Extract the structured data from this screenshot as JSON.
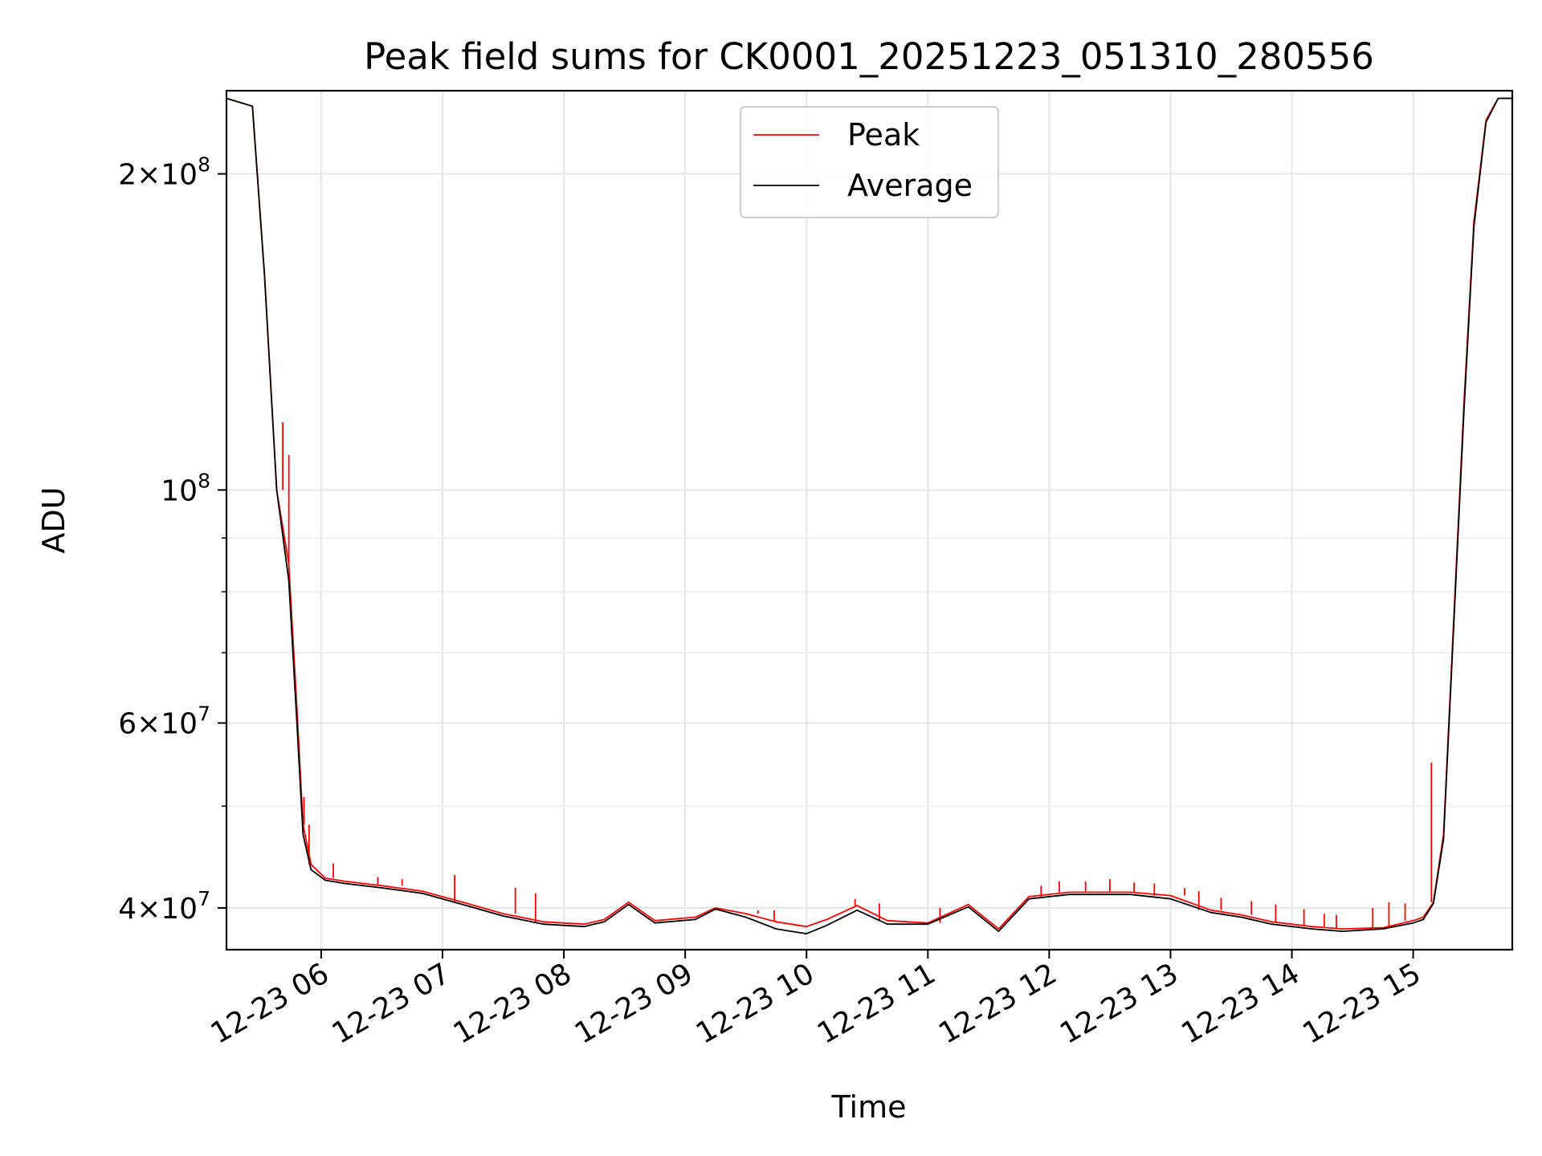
{
  "chart_data": {
    "type": "line",
    "title": "Peak field sums for CK0001_20251223_051310_280556",
    "xlabel": "Time",
    "ylabel": "ADU",
    "yscale": "log",
    "grid": true,
    "legend_position": "upper center",
    "xlim": [
      "2025-12-23T05:13:10",
      "2025-12-23T15:49:00"
    ],
    "ylim": [
      36500000,
      240000000
    ],
    "x_ticks": [
      {
        "label": "12-23 06",
        "time": "2025-12-23T06:00:00"
      },
      {
        "label": "12-23 07",
        "time": "2025-12-23T07:00:00"
      },
      {
        "label": "12-23 08",
        "time": "2025-12-23T08:00:00"
      },
      {
        "label": "12-23 09",
        "time": "2025-12-23T09:00:00"
      },
      {
        "label": "12-23 10",
        "time": "2025-12-23T10:00:00"
      },
      {
        "label": "12-23 11",
        "time": "2025-12-23T11:00:00"
      },
      {
        "label": "12-23 12",
        "time": "2025-12-23T12:00:00"
      },
      {
        "label": "12-23 13",
        "time": "2025-12-23T13:00:00"
      },
      {
        "label": "12-23 14",
        "time": "2025-12-23T14:00:00"
      },
      {
        "label": "12-23 15",
        "time": "2025-12-23T15:00:00"
      }
    ],
    "y_ticks": [
      {
        "mantissa": "4",
        "exponent": "7",
        "value": 40000000
      },
      {
        "mantissa": "6",
        "exponent": "7",
        "value": 60000000
      },
      {
        "mantissa": "",
        "exponent": "8",
        "value": 100000000
      },
      {
        "mantissa": "2",
        "exponent": "8",
        "value": 200000000
      }
    ],
    "y_minor_ticks": [
      50000000,
      70000000,
      80000000,
      90000000
    ],
    "times_sampled": [
      "2025-12-23T05:13:10",
      "2025-12-23T05:26:00",
      "2025-12-23T05:32:00",
      "2025-12-23T05:38:00",
      "2025-12-23T05:44:00",
      "2025-12-23T05:48:00",
      "2025-12-23T05:51:00",
      "2025-12-23T05:55:00",
      "2025-12-23T06:02:00",
      "2025-12-23T06:12:00",
      "2025-12-23T06:30:00",
      "2025-12-23T06:50:00",
      "2025-12-23T07:10:00",
      "2025-12-23T07:30:00",
      "2025-12-23T07:50:00",
      "2025-12-23T08:10:00",
      "2025-12-23T08:20:00",
      "2025-12-23T08:32:00",
      "2025-12-23T08:45:00",
      "2025-12-23T09:05:00",
      "2025-12-23T09:15:00",
      "2025-12-23T09:30:00",
      "2025-12-23T09:45:00",
      "2025-12-23T10:00:00",
      "2025-12-23T10:10:00",
      "2025-12-23T10:25:00",
      "2025-12-23T10:40:00",
      "2025-12-23T11:00:00",
      "2025-12-23T11:20:00",
      "2025-12-23T11:35:00",
      "2025-12-23T11:50:00",
      "2025-12-23T12:10:00",
      "2025-12-23T12:40:00",
      "2025-12-23T13:00:00",
      "2025-12-23T13:20:00",
      "2025-12-23T13:35:00",
      "2025-12-23T13:50:00",
      "2025-12-23T14:10:00",
      "2025-12-23T14:25:00",
      "2025-12-23T14:45:00",
      "2025-12-23T15:00:00",
      "2025-12-23T15:05:00",
      "2025-12-23T15:10:00",
      "2025-12-23T15:15:00",
      "2025-12-23T15:20:00",
      "2025-12-23T15:25:00",
      "2025-12-23T15:30:00",
      "2025-12-23T15:36:00",
      "2025-12-23T15:42:00",
      "2025-12-23T15:49:00"
    ],
    "series": [
      {
        "name": "Peak",
        "color": "#ff0000",
        "values": [
          236000000,
          232000000,
          160000000,
          100000000,
          85000000,
          62000000,
          48000000,
          44000000,
          42700000,
          42400000,
          42000000,
          41500000,
          40500000,
          39500000,
          38800000,
          38600000,
          39000000,
          40500000,
          38900000,
          39200000,
          40000000,
          39500000,
          38800000,
          38400000,
          39000000,
          40200000,
          38900000,
          38700000,
          40300000,
          38200000,
          41000000,
          41400000,
          41400000,
          41100000,
          39800000,
          39400000,
          38800000,
          38400000,
          38200000,
          38300000,
          38900000,
          39200000,
          40500000,
          47000000,
          75000000,
          120000000,
          180000000,
          225000000,
          236000000,
          236000000
        ],
        "spikes": [
          {
            "time": "2025-12-23T05:41:00",
            "value": 116000000
          },
          {
            "time": "2025-12-23T05:44:00",
            "value": 108000000
          },
          {
            "time": "2025-12-23T05:51:30",
            "value": 51000000
          },
          {
            "time": "2025-12-23T05:54:00",
            "value": 48000000
          },
          {
            "time": "2025-12-23T06:06:00",
            "value": 44100000
          },
          {
            "time": "2025-12-23T06:28:00",
            "value": 42800000
          },
          {
            "time": "2025-12-23T06:40:00",
            "value": 42600000
          },
          {
            "time": "2025-12-23T07:06:00",
            "value": 43000000
          },
          {
            "time": "2025-12-23T07:36:00",
            "value": 41800000
          },
          {
            "time": "2025-12-23T07:46:00",
            "value": 41300000
          },
          {
            "time": "2025-12-23T09:36:00",
            "value": 39800000
          },
          {
            "time": "2025-12-23T09:44:00",
            "value": 39800000
          },
          {
            "time": "2025-12-23T10:24:00",
            "value": 40800000
          },
          {
            "time": "2025-12-23T10:36:00",
            "value": 40400000
          },
          {
            "time": "2025-12-23T11:06:00",
            "value": 40000000
          },
          {
            "time": "2025-12-23T11:56:00",
            "value": 42000000
          },
          {
            "time": "2025-12-23T12:05:00",
            "value": 42400000
          },
          {
            "time": "2025-12-23T12:18:00",
            "value": 42400000
          },
          {
            "time": "2025-12-23T12:30:00",
            "value": 42600000
          },
          {
            "time": "2025-12-23T12:42:00",
            "value": 42300000
          },
          {
            "time": "2025-12-23T12:52:00",
            "value": 42200000
          },
          {
            "time": "2025-12-23T13:07:00",
            "value": 41800000
          },
          {
            "time": "2025-12-23T13:14:00",
            "value": 41500000
          },
          {
            "time": "2025-12-23T13:25:00",
            "value": 40900000
          },
          {
            "time": "2025-12-23T13:40:00",
            "value": 40600000
          },
          {
            "time": "2025-12-23T13:52:00",
            "value": 40300000
          },
          {
            "time": "2025-12-23T14:06:00",
            "value": 39900000
          },
          {
            "time": "2025-12-23T14:16:00",
            "value": 39500000
          },
          {
            "time": "2025-12-23T14:22:00",
            "value": 39400000
          },
          {
            "time": "2025-12-23T14:40:00",
            "value": 40000000
          },
          {
            "time": "2025-12-23T14:48:00",
            "value": 40500000
          },
          {
            "time": "2025-12-23T14:56:00",
            "value": 40400000
          },
          {
            "time": "2025-12-23T15:09:00",
            "value": 55000000
          }
        ]
      },
      {
        "name": "Average",
        "color": "#000000",
        "values": [
          236000000,
          232000000,
          160000000,
          100000000,
          82000000,
          60000000,
          47000000,
          43500000,
          42500000,
          42200000,
          41800000,
          41300000,
          40300000,
          39300000,
          38600000,
          38400000,
          38800000,
          40300000,
          38700000,
          39000000,
          39900000,
          39200000,
          38200000,
          37800000,
          38500000,
          39800000,
          38600000,
          38600000,
          40100000,
          38000000,
          40800000,
          41200000,
          41200000,
          40800000,
          39600000,
          39200000,
          38600000,
          38200000,
          38000000,
          38200000,
          38700000,
          39000000,
          40400000,
          46500000,
          74000000,
          118000000,
          178000000,
          224000000,
          236000000,
          236000000
        ]
      }
    ]
  }
}
